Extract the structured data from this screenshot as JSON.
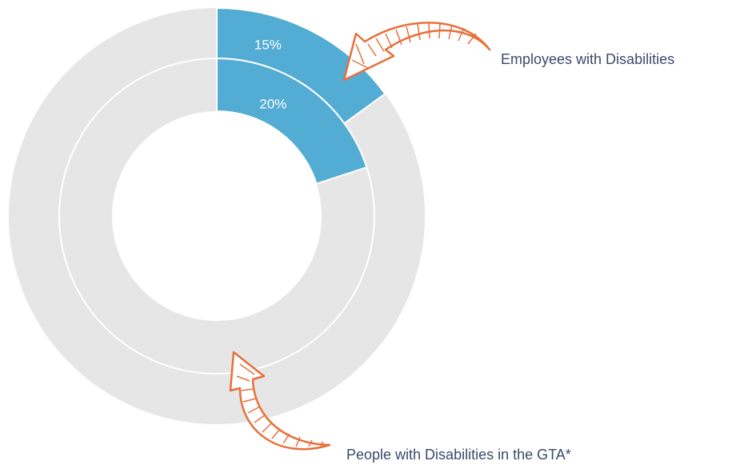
{
  "chart_data": {
    "type": "donut",
    "series": [
      {
        "name": "Employees with Disabilities",
        "color": "#53acd3",
        "values": [
          15
        ],
        "value_labels": [
          "15%"
        ]
      },
      {
        "name": "People with Disabilities in the GTA*",
        "color": "#53acd3",
        "values": [
          20
        ],
        "value_labels": [
          "20%"
        ]
      }
    ]
  }
}
